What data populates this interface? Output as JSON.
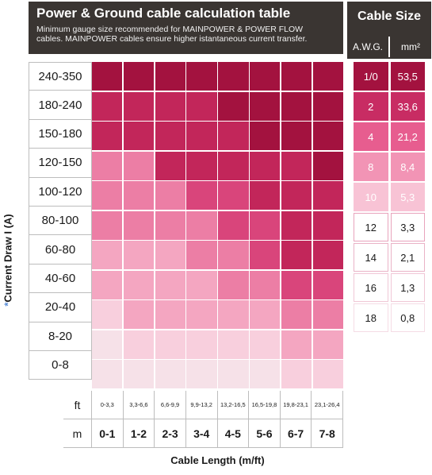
{
  "header": {
    "title": "Power & Ground cable calculation table",
    "subtitle_line1": "Minimum gauge size recommended for MAINPOWER & POWER FLOW",
    "subtitle_line2": "cables. MAINPOWER cables ensure higher istantaneous current transfer."
  },
  "cable_size": {
    "title": "Cable Size",
    "col_awg": "A.W.G.",
    "col_mm": "mm²",
    "rows": [
      {
        "awg": "1/0",
        "mm2": "53,5",
        "color": "#a3123f",
        "text_color": "#ffffff"
      },
      {
        "awg": "2",
        "mm2": "33,6",
        "color": "#c82c63",
        "text_color": "#ffffff"
      },
      {
        "awg": "4",
        "mm2": "21,2",
        "color": "#e75d8f",
        "text_color": "#ffffff"
      },
      {
        "awg": "8",
        "mm2": "8,4",
        "color": "#f294b5",
        "text_color": "#ffffff"
      },
      {
        "awg": "10",
        "mm2": "5,3",
        "color": "#f8c3d5",
        "text_color": "#ffffff"
      },
      {
        "awg": "12",
        "mm2": "3,3",
        "color": "#ffffff",
        "text_color": "#1a1a1a"
      },
      {
        "awg": "14",
        "mm2": "2,1",
        "color": "#ffffff",
        "text_color": "#1a1a1a"
      },
      {
        "awg": "16",
        "mm2": "1,3",
        "color": "#ffffff",
        "text_color": "#1a1a1a"
      },
      {
        "awg": "18",
        "mm2": "0,8",
        "color": "#ffffff",
        "text_color": "#1a1a1a"
      }
    ]
  },
  "legend_borders": [
    "#a3123f",
    "#c82c63",
    "#e75d8f",
    "#f294b5",
    "#f8c3d5",
    "#e8a3bc",
    "#eab3c7",
    "#f0c7d6",
    "#f5dce5"
  ],
  "y_axis": {
    "star": "*",
    "label": "Current Draw I (A)"
  },
  "current_ranges": [
    "240-350",
    "180-240",
    "150-180",
    "120-150",
    "100-120",
    "80-100",
    "60-80",
    "40-60",
    "20-40",
    "8-20",
    "0-8"
  ],
  "length_ft": [
    "0-3,3",
    "3,3-6,6",
    "6,6-9,9",
    "9,9-13,2",
    "13,2-16,5",
    "16,5-19,8",
    "19,8-23,1",
    "23,1-26,4"
  ],
  "length_m": [
    "0-1",
    "1-2",
    "2-3",
    "3-4",
    "4-5",
    "5-6",
    "6-7",
    "7-8"
  ],
  "unit_ft": "ft",
  "unit_m": "m",
  "x_axis_label": "Cable Length (m/ft)",
  "palette": [
    "#f6e1e8",
    "#f8cfdd",
    "#f4a6c1",
    "#ec7ea5",
    "#d9457b",
    "#c2265a",
    "#a3123f"
  ],
  "grid_levels": [
    [
      6,
      6,
      6,
      6,
      6,
      6,
      6,
      6
    ],
    [
      5,
      5,
      5,
      5,
      6,
      6,
      6,
      6
    ],
    [
      5,
      5,
      5,
      5,
      5,
      6,
      6,
      6
    ],
    [
      3,
      3,
      5,
      5,
      5,
      5,
      5,
      6
    ],
    [
      3,
      3,
      3,
      4,
      4,
      5,
      5,
      5
    ],
    [
      3,
      3,
      3,
      3,
      4,
      4,
      5,
      5
    ],
    [
      2,
      2,
      2,
      3,
      3,
      4,
      5,
      5
    ],
    [
      2,
      2,
      2,
      2,
      3,
      3,
      4,
      4
    ],
    [
      1,
      2,
      2,
      2,
      2,
      2,
      3,
      3
    ],
    [
      0,
      1,
      1,
      1,
      1,
      1,
      2,
      2
    ],
    [
      0,
      0,
      0,
      0,
      0,
      0,
      1,
      1
    ]
  ]
}
